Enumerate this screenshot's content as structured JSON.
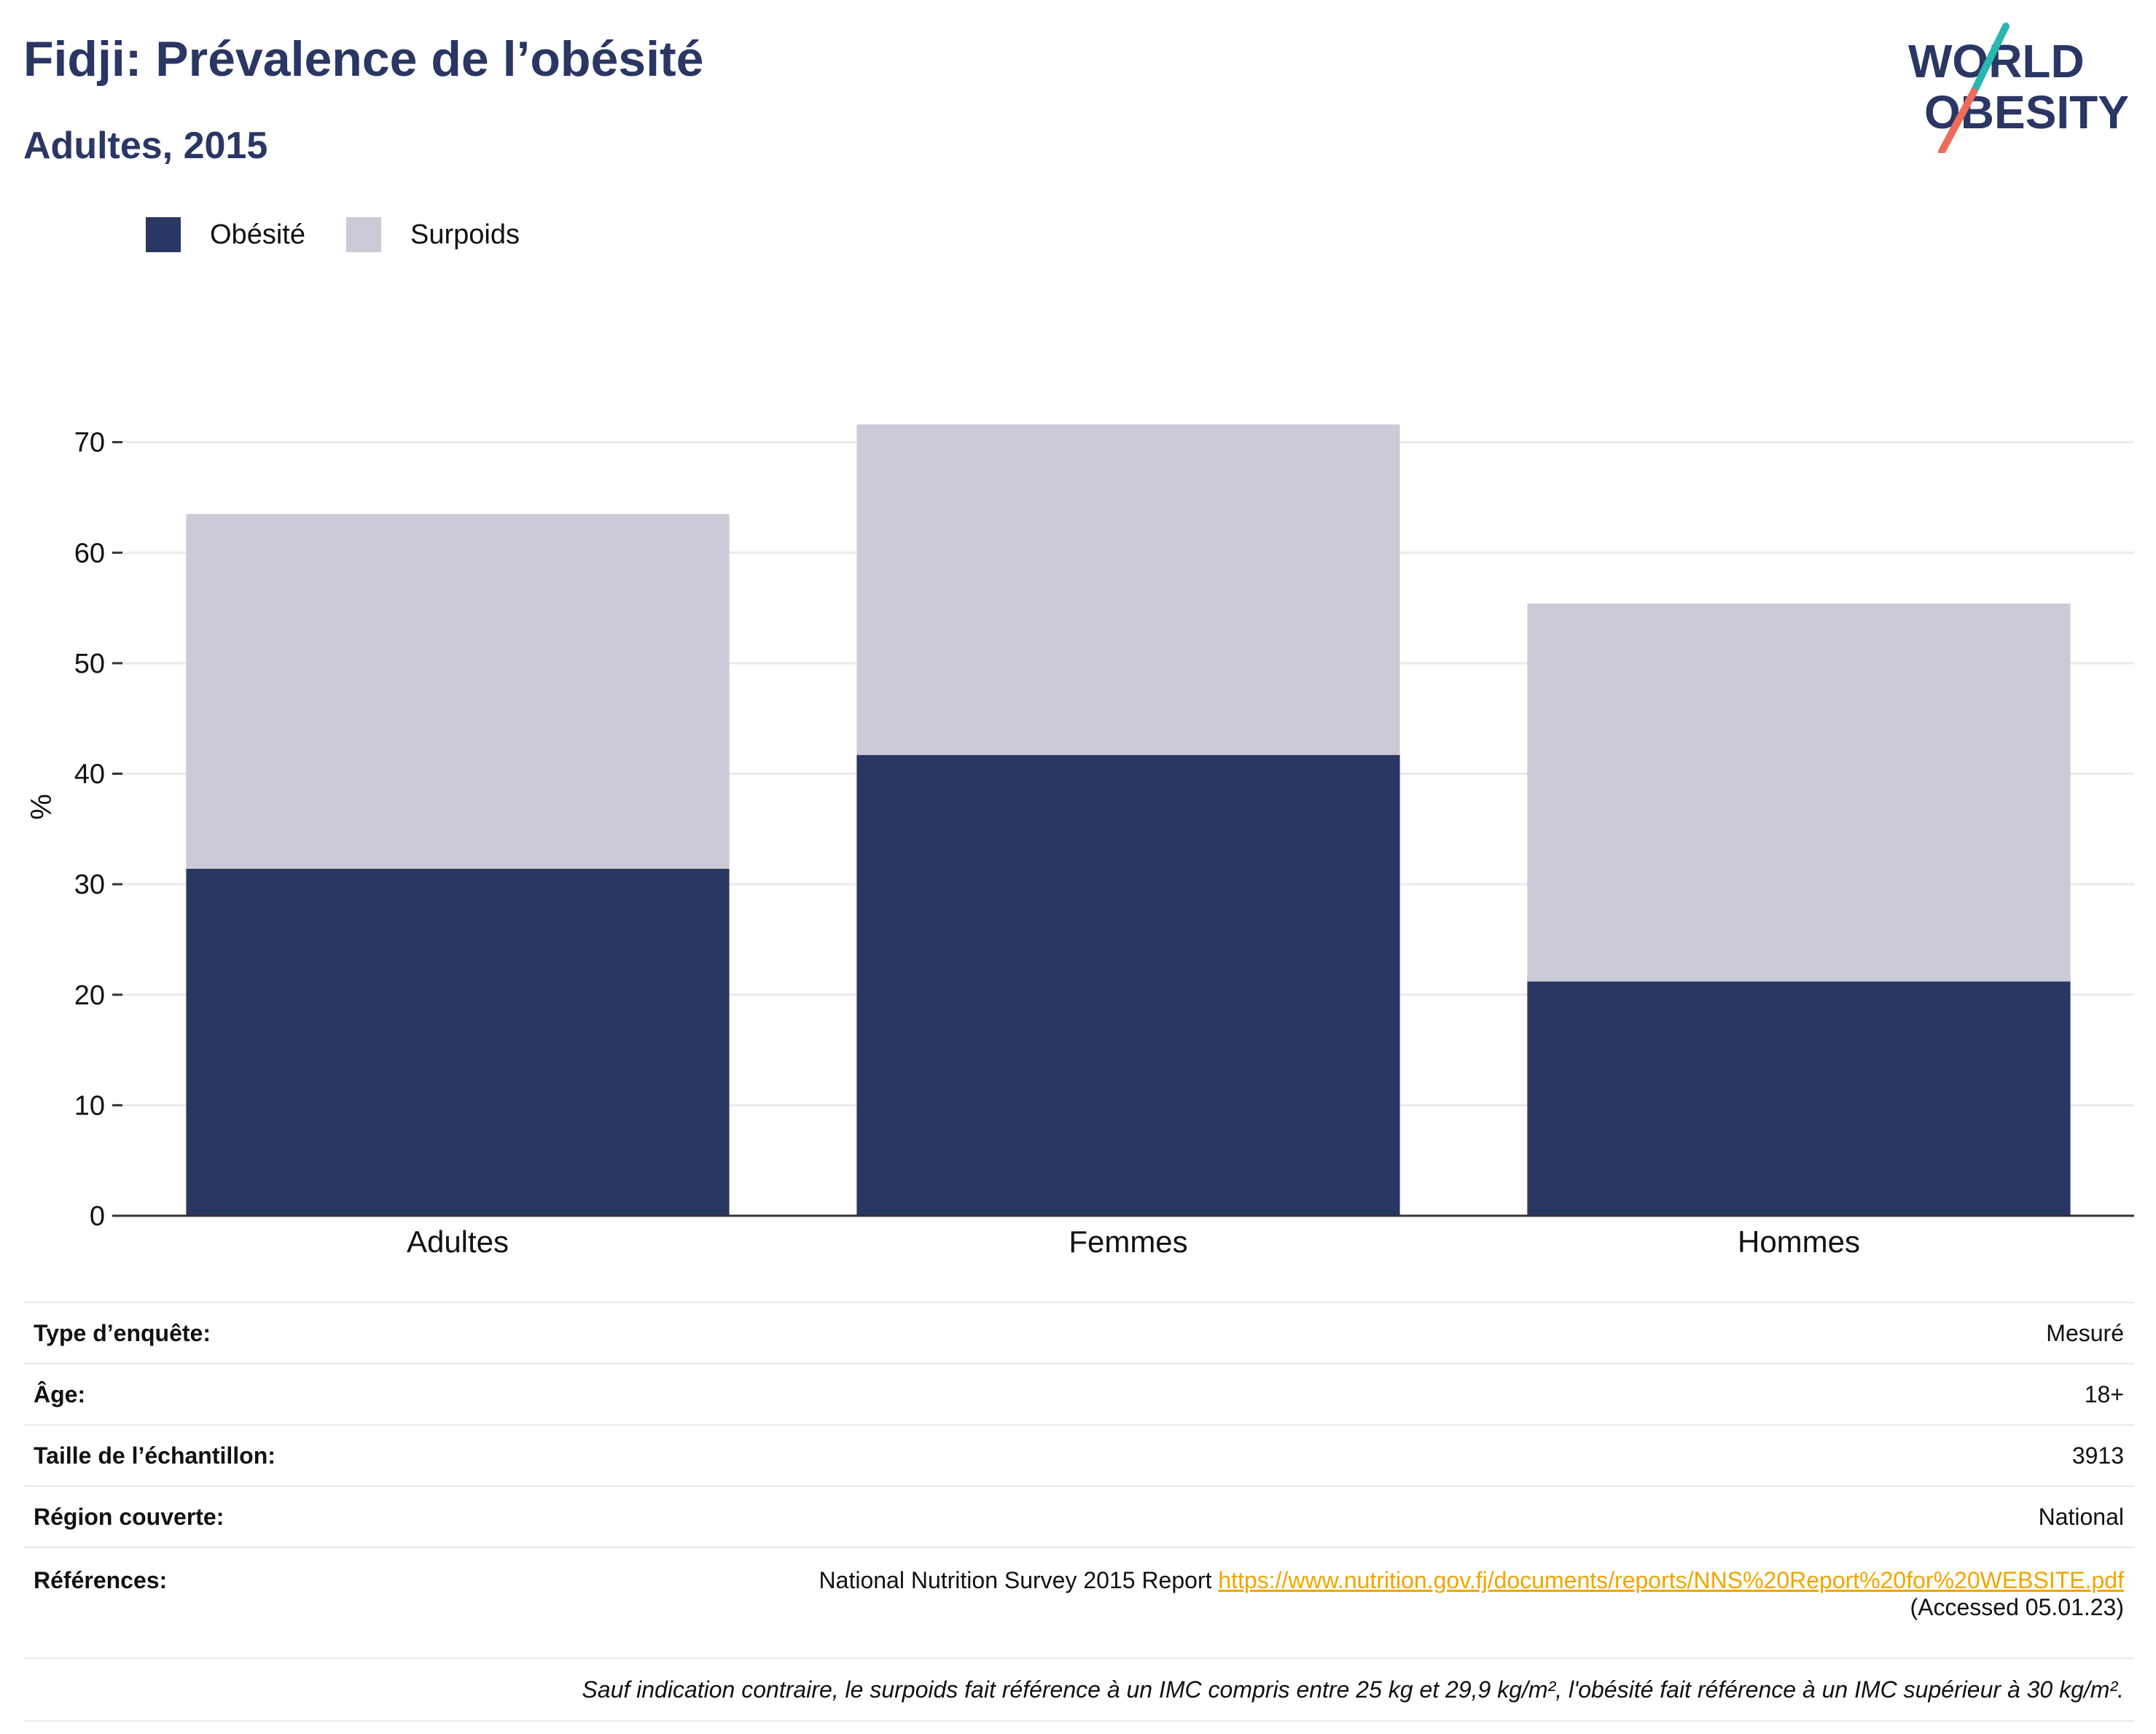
{
  "header": {
    "title": "Fidji: Prévalence de l’obésité",
    "subtitle": "Adultes, 2015"
  },
  "logo": {
    "line1": "WORLD",
    "line2": "OBESITY"
  },
  "legend": [
    {
      "label": "Obésité",
      "color": "#2a3663"
    },
    {
      "label": "Surpoids",
      "color": "#cacbd6"
    }
  ],
  "chart_data": {
    "type": "bar",
    "stacked": true,
    "categories": [
      "Adultes",
      "Femmes",
      "Hommes"
    ],
    "series": [
      {
        "name": "Obésité",
        "color": "#2a3663",
        "values": [
          31.4,
          41.7,
          21.2
        ]
      },
      {
        "name": "Surpoids",
        "color": "#cacbd6",
        "values": [
          32.1,
          29.9,
          34.2
        ]
      }
    ],
    "ylabel": "%",
    "ylim": [
      0,
      74
    ],
    "yticks": [
      0,
      10,
      20,
      30,
      40,
      50,
      60,
      70
    ],
    "grid": true,
    "legend_position": "top-left"
  },
  "info": {
    "survey_type_label": "Type d’enquête:",
    "survey_type_value": "Mesuré",
    "age_label": "Âge:",
    "age_value": "18+",
    "sample_label": "Taille de l’échantillon:",
    "sample_value": "3913",
    "region_label": "Région couverte:",
    "region_value": "National",
    "ref_label": "Références:",
    "ref_text": "National Nutrition Survey 2015 Report",
    "ref_url": "https://www.nutrition.gov.fj/documents/reports/NNS%20Report%20for%20WEBSITE.pdf",
    "ref_accessed": "(Accessed 05.01.23)",
    "note": "Sauf indication contraire, le surpoids fait référence à un IMC compris entre 25 kg et 29,9 kg/m², l'obésité fait référence à un IMC supérieur à 30 kg/m²."
  }
}
